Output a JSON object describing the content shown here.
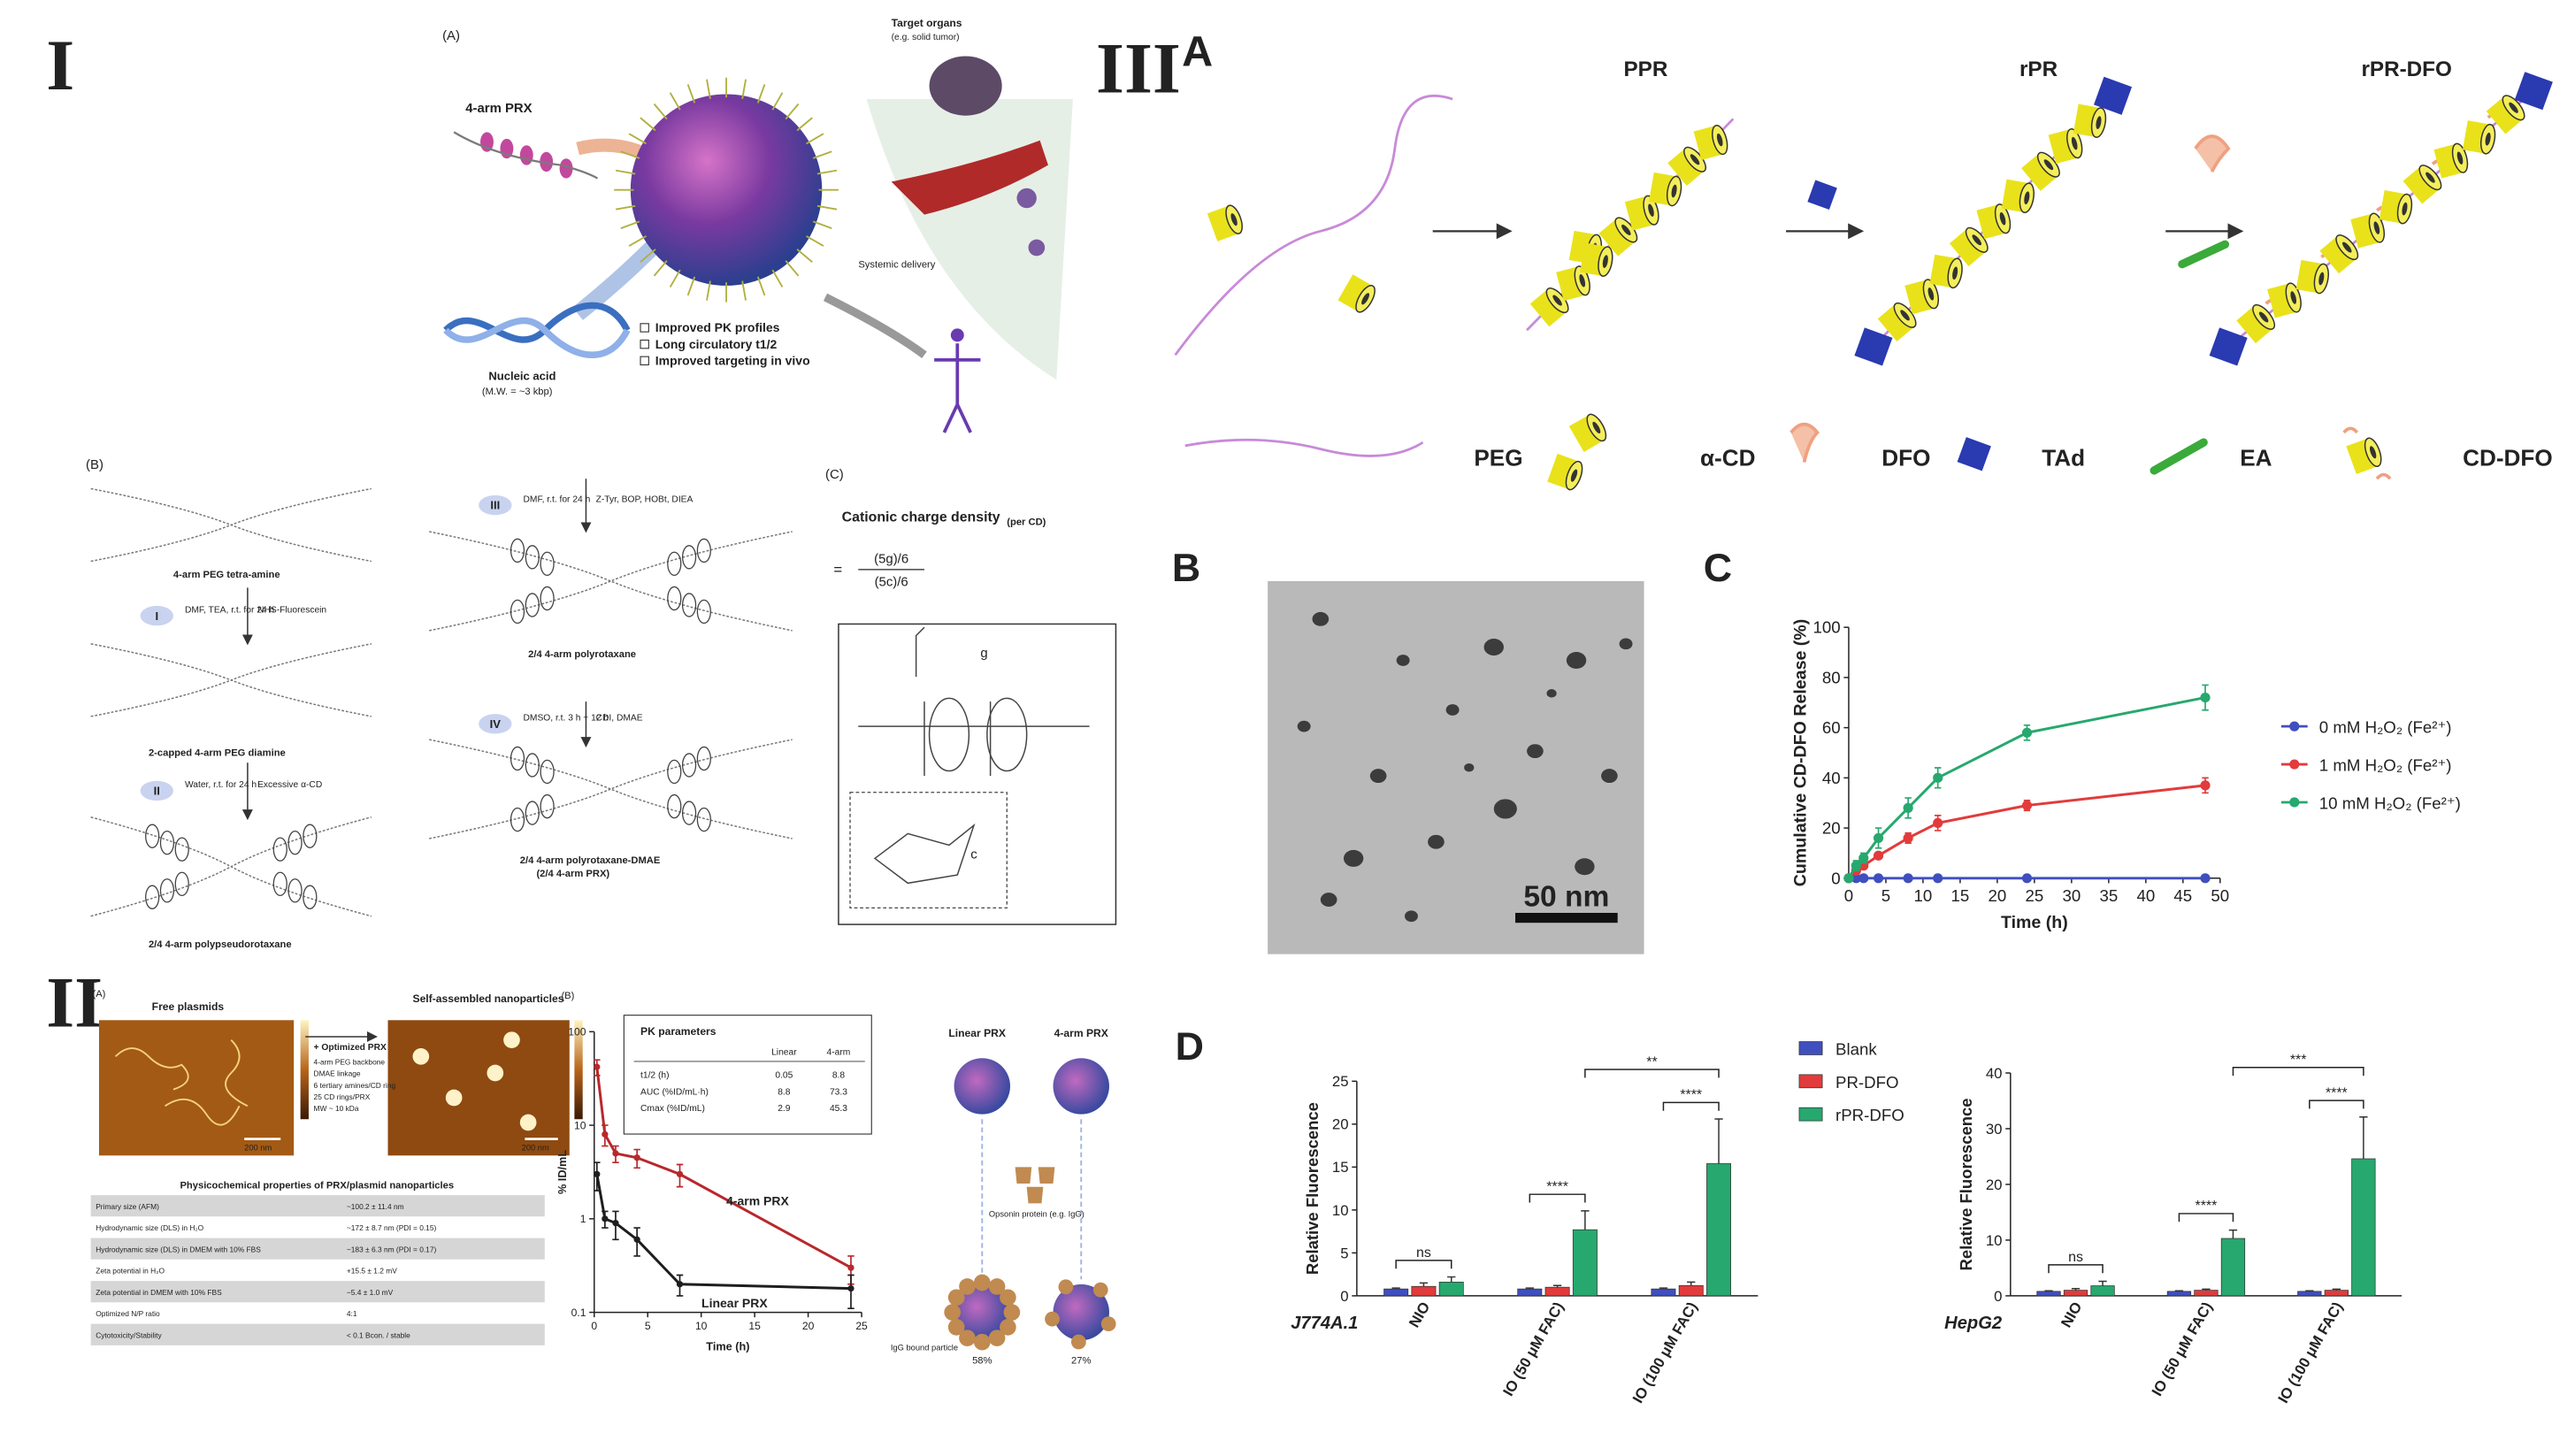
{
  "panel_labels": [
    "I",
    "II",
    "III",
    "A",
    "B",
    "C",
    "D"
  ],
  "panel_I": {
    "A": {
      "label": "(A)",
      "prx": "4-arm PRX",
      "nucleic_acid": "Nucleic acid",
      "mw": "(M.W. = ~3 kbp)",
      "benefits": [
        "Improved PK profiles",
        "Long circulatory t1/2",
        "Improved targeting in vivo"
      ],
      "target": "Target organs",
      "target_example": "(e.g. solid tumor)",
      "delivery": "Systemic delivery"
    },
    "B": {
      "label": "(B)",
      "compounds": [
        "4-arm PEG tetra-amine",
        "2-capped 4-arm PEG diamine",
        "2/4 4-arm polypseudorotaxane",
        "2/4 4-arm polyrotaxane",
        "2/4 4-arm polyrotaxane-DMAE",
        "(2/4 4-arm PRX)"
      ],
      "steps": [
        {
          "label": "I",
          "conditions": "DMF, TEA, r.t. for 24 h",
          "reagent": "NHS-Fluorescein"
        },
        {
          "label": "II",
          "conditions": "Water, r.t. for 24 h",
          "reagent": "Excessive α-CD"
        },
        {
          "label": "III",
          "conditions": "DMF, r.t. for 24 h",
          "reagent": "Z-Tyr, BOP, HOBt, DIEA"
        },
        {
          "label": "IV",
          "conditions": "DMSO, r.t. 3 h + 12 h",
          "reagent": "CDI, DMAE"
        }
      ]
    },
    "C": {
      "label": "(C)",
      "title": "Cationic charge density",
      "title_sub": "(per CD)",
      "equals": "=",
      "numerator": "(5g)/6",
      "denominator": "(5c)/6",
      "g": "g",
      "c": "c"
    }
  },
  "panel_II": {
    "A": {
      "label": "(A)",
      "free": "Free plasmids",
      "assembled": "Self-assembled nanoparticles",
      "plus": "+ Optimized PRX",
      "bullets": [
        "4-arm PEG backbone",
        "DMAE linkage",
        "6 tertiary amines/CD ring",
        "25 CD rings/PRX",
        "MW ~ 10 kDa"
      ],
      "scale": [
        "200 nm",
        "200 nm"
      ],
      "table_title": "Physicochemical properties of PRX/plasmid nanoparticles",
      "table_rows": [
        [
          "Primary size (AFM)",
          "~100.2 ± 11.4 nm"
        ],
        [
          "Hydrodynamic size (DLS) in H₂O",
          "~172 ± 8.7 nm (PDI = 0.15)"
        ],
        [
          "Hydrodynamic size (DLS) in DMEM with 10% FBS",
          "~183 ± 6.3 nm (PDI = 0.17)"
        ],
        [
          "Zeta potential in H₂O",
          "+15.5 ± 1.2 mV"
        ],
        [
          "Zeta potential in DMEM with 10% FBS",
          "−5.4 ± 1.0 mV"
        ],
        [
          "Optimized N/P ratio",
          "4:1"
        ],
        [
          "Cytotoxicity/Stability",
          "< 0.1 Bcon. / stable"
        ]
      ]
    },
    "B": {
      "label": "(B)"
    },
    "C": {
      "linear": "Linear PRX",
      "four_arm": "4-arm PRX",
      "opsonin": "Opsonin protein (e.g. IgG)",
      "bound": "IgG bound particle",
      "percent": [
        "58%",
        "27%"
      ]
    }
  },
  "panel_III": {
    "A": {
      "stages": [
        "PPR",
        "rPR",
        "rPR-DFO"
      ],
      "legend": [
        "PEG",
        "α-CD",
        "DFO",
        "TAd",
        "EA",
        "CD-DFO"
      ]
    },
    "B": {
      "scale": "50 nm"
    }
  },
  "chart_data": [
    {
      "type": "line",
      "xlabel": "Time (h)",
      "ylabel": "% ID/mL",
      "log_y": true,
      "x": [
        0.25,
        1,
        2,
        4,
        8,
        24
      ],
      "series": [
        {
          "name": "4-arm PRX",
          "color": "#b8282c",
          "values": [
            42,
            8,
            5,
            4.5,
            3,
            0.3
          ],
          "errors": [
            8,
            2,
            1,
            1,
            0.8,
            0.1
          ]
        },
        {
          "name": "Linear PRX",
          "color": "#1e1e1e",
          "values": [
            3,
            1,
            0.9,
            0.6,
            0.2,
            0.18
          ],
          "errors": [
            1,
            0.2,
            0.3,
            0.2,
            0.05,
            0.07
          ]
        }
      ],
      "xlim": [
        0,
        25
      ],
      "xticks": [
        0,
        5,
        10,
        15,
        20,
        25
      ],
      "ylim": [
        0.1,
        100
      ],
      "yticks": [
        0.1,
        1,
        10,
        100
      ],
      "inset_title": "PK parameters",
      "inset_columns": [
        "Linear",
        "4-arm"
      ],
      "inset_rows": [
        [
          "t1/2 (h)",
          "0.05",
          "8.8"
        ],
        [
          "AUC (%ID/mL·h)",
          "8.8",
          "73.3"
        ],
        [
          "Cmax (%ID/mL)",
          "2.9",
          "45.3"
        ]
      ]
    },
    {
      "type": "line",
      "xlabel": "Time (h)",
      "ylabel": "Cumulative CD-DFO Release (%)",
      "log_y": false,
      "x": [
        0,
        1,
        2,
        4,
        8,
        12,
        24,
        48
      ],
      "series": [
        {
          "name": "0 mM H₂O₂ (Fe²⁺)",
          "color": "#3f4fbf",
          "values": [
            0,
            0,
            0,
            0,
            0,
            0,
            0,
            0
          ],
          "errors": [
            0,
            0,
            0,
            0,
            0,
            0,
            0,
            0
          ]
        },
        {
          "name": "1 mM H₂O₂ (Fe²⁺)",
          "color": "#e23b3b",
          "values": [
            0,
            3,
            5,
            9,
            16,
            22,
            29,
            37
          ],
          "errors": [
            0,
            1,
            1,
            1,
            2,
            3,
            2,
            3
          ]
        },
        {
          "name": "10 mM H₂O₂ (Fe²⁺)",
          "color": "#27a86e",
          "values": [
            0,
            5,
            8,
            16,
            28,
            40,
            58,
            72
          ],
          "errors": [
            0,
            2,
            2,
            4,
            4,
            4,
            3,
            5
          ]
        }
      ],
      "xlim": [
        0,
        50
      ],
      "xticks": [
        0,
        5,
        10,
        15,
        20,
        25,
        30,
        35,
        40,
        45,
        50
      ],
      "ylim": [
        0,
        100
      ],
      "yticks": [
        0,
        20,
        40,
        60,
        80,
        100
      ],
      "legend": "right"
    },
    {
      "type": "bar",
      "ylabel": "Relative Fluorescence",
      "cell_line": "J774A.1",
      "categories": [
        "NIO",
        "IO (50 μM FAC)",
        "IO (100 μM FAC)"
      ],
      "series": [
        {
          "name": "Blank",
          "color": "#3f4fbf",
          "values": [
            0.8,
            0.8,
            0.8
          ],
          "errors": [
            0.1,
            0.1,
            0.1
          ]
        },
        {
          "name": "PR-DFO",
          "color": "#e23b3b",
          "values": [
            1.1,
            1.0,
            1.2
          ],
          "errors": [
            0.4,
            0.2,
            0.4
          ]
        },
        {
          "name": "rPR-DFO",
          "color": "#27a86e",
          "values": [
            1.6,
            7.7,
            15.4
          ],
          "errors": [
            0.6,
            2.2,
            5.2
          ]
        }
      ],
      "ylim": [
        0,
        25
      ],
      "yticks": [
        0,
        5,
        10,
        15,
        20,
        25
      ],
      "significance": [
        "ns",
        "****",
        "****",
        "**"
      ],
      "legend": "upper right"
    },
    {
      "type": "bar",
      "ylabel": "Relative Fluorescence",
      "cell_line": "HepG2",
      "categories": [
        "NIO",
        "IO (50 μM FAC)",
        "IO (100 μM FAC)"
      ],
      "series": [
        {
          "values": [
            0.8,
            0.8,
            0.8
          ],
          "errors": [
            0.1,
            0.1,
            0.1
          ]
        },
        {
          "values": [
            1.0,
            1.0,
            1.0
          ],
          "errors": [
            0.3,
            0.2,
            0.2
          ]
        },
        {
          "values": [
            1.8,
            10.3,
            24.6
          ],
          "errors": [
            0.8,
            1.5,
            7.5
          ]
        }
      ],
      "ylim": [
        0,
        40
      ],
      "yticks": [
        0,
        10,
        20,
        30,
        40
      ],
      "significance": [
        "ns",
        "****",
        "****",
        "***"
      ]
    }
  ]
}
